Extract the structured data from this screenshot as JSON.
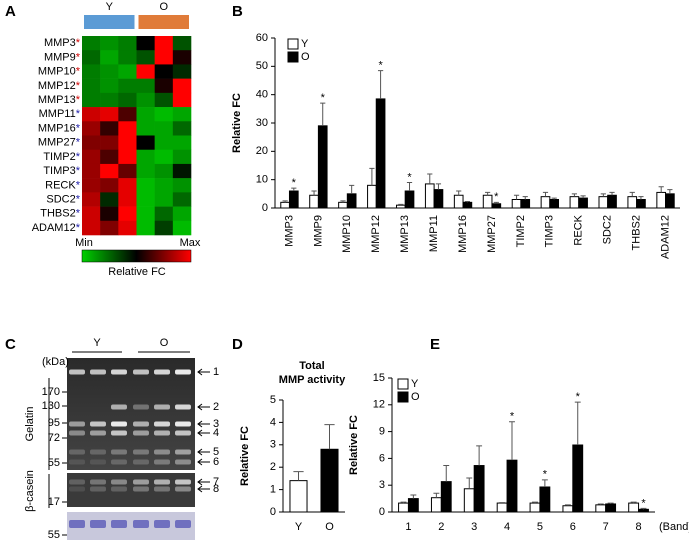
{
  "chart_data": [
    {
      "type": "heatmap",
      "panel": "A",
      "columns": [
        "Y",
        "O"
      ],
      "column_colors": [
        "#5b9bd5",
        "#e07b39"
      ],
      "rows": [
        "MMP3",
        "MMP9",
        "MMP10",
        "MMP12",
        "MMP13",
        "MMP11",
        "MMP16",
        "MMP27",
        "TIMP2",
        "TIMP3",
        "RECK",
        "SDC2",
        "THBS2",
        "ADAM12"
      ],
      "row_markers": [
        "*",
        "*",
        "*",
        "*",
        "*",
        "*",
        "*",
        "*",
        "*",
        "*",
        "*",
        "*",
        "*",
        "*"
      ],
      "row_marker_colors": [
        "#d00000",
        "#d00000",
        "#d00000",
        "#d00000",
        "#d00000",
        "#1a1aa8",
        "#1a1aa8",
        "#1a1aa8",
        "#1a1aa8",
        "#1a1aa8",
        "#1a1aa8",
        "#1a1aa8",
        "#1a1aa8",
        "#1a1aa8"
      ],
      "z": [
        [
          -0.6,
          -0.7,
          -0.6,
          0,
          1,
          -0.4
        ],
        [
          -0.5,
          -0.8,
          -0.6,
          -0.4,
          1,
          0.1
        ],
        [
          -0.6,
          -0.7,
          -0.8,
          1,
          0,
          -0.2
        ],
        [
          -0.6,
          -0.7,
          -0.6,
          -0.6,
          0.1,
          1
        ],
        [
          -0.6,
          -0.6,
          -0.5,
          -0.7,
          -0.4,
          1
        ],
        [
          0.8,
          0.9,
          0.3,
          -0.8,
          -0.9,
          -0.8
        ],
        [
          0.6,
          0.2,
          1,
          -0.8,
          -0.8,
          -0.5
        ],
        [
          0.5,
          0.5,
          1,
          0,
          -0.8,
          -0.8
        ],
        [
          0.6,
          0.3,
          1,
          -0.8,
          -0.9,
          -0.7
        ],
        [
          0.6,
          1,
          0.4,
          -0.8,
          -0.7,
          -0.1
        ],
        [
          0.6,
          0.5,
          0.9,
          -0.9,
          -0.8,
          -0.7
        ],
        [
          0.7,
          -0.2,
          0.9,
          -0.9,
          -0.8,
          -0.5
        ],
        [
          0.8,
          0.1,
          1,
          -0.9,
          -0.5,
          -0.8
        ],
        [
          0.8,
          0.5,
          0.9,
          -0.9,
          -0.3,
          -0.9
        ]
      ],
      "zlim": [
        -1,
        1
      ],
      "colormap": [
        "#00d000",
        "#000000",
        "#ff0000"
      ],
      "colorbar_min": "Min",
      "colorbar_max": "Max",
      "colorbar_label": "Relative FC"
    },
    {
      "type": "bar",
      "panel": "B",
      "ylabel": "Relative FC",
      "categories": [
        "MMP3",
        "MMP9",
        "MMP10",
        "MMP12",
        "MMP13",
        "MMP11",
        "MMP16",
        "MMP27",
        "TIMP2",
        "TIMP3",
        "RECK",
        "SDC2",
        "THBS2",
        "ADAM12"
      ],
      "series": [
        {
          "name": "Y",
          "color": "#ffffff",
          "values": [
            2,
            4.5,
            2,
            8,
            1,
            8.5,
            4.5,
            4.5,
            3,
            4,
            4,
            4,
            4,
            5.5
          ],
          "errors": [
            0.5,
            1.5,
            0.5,
            6,
            0.3,
            3.5,
            1.5,
            1,
            1.5,
            1.5,
            1,
            1,
            1.5,
            2
          ],
          "marks": [
            null,
            null,
            null,
            null,
            null,
            null,
            null,
            null,
            null,
            null,
            null,
            null,
            null,
            null
          ]
        },
        {
          "name": "O",
          "color": "#000000",
          "values": [
            6,
            29,
            5,
            38.5,
            6,
            6.5,
            2,
            1.5,
            3,
            3,
            3.5,
            4.5,
            3,
            5
          ],
          "errors": [
            1,
            8,
            3,
            10,
            3,
            2,
            0.3,
            0.5,
            1,
            0.5,
            0.8,
            1,
            1,
            1.5
          ],
          "marks": [
            "*",
            "*",
            null,
            "*",
            "*",
            null,
            null,
            "*",
            null,
            null,
            null,
            null,
            null,
            null
          ]
        }
      ],
      "ylim": [
        0,
        60
      ],
      "yticks": [
        0,
        10,
        20,
        30,
        40,
        50,
        60
      ]
    },
    {
      "type": "bar",
      "panel": "D",
      "title": [
        "Total",
        "MMP activity"
      ],
      "ylabel": "Relative FC",
      "categories": [
        "Y",
        "O"
      ],
      "series": [
        {
          "color": "#ffffff",
          "values": [
            1.4,
            null
          ],
          "errors": [
            0.4,
            null
          ],
          "marks": [
            null,
            null
          ]
        },
        {
          "color": "#000000",
          "values": [
            null,
            2.8
          ],
          "errors": [
            null,
            1.1
          ],
          "marks": [
            null,
            null
          ]
        }
      ],
      "ylim": [
        0,
        5
      ],
      "yticks": [
        0,
        1,
        2,
        3,
        4,
        5
      ]
    },
    {
      "type": "bar",
      "panel": "E",
      "ylabel": "Relative FC",
      "xlabel": "(Band)",
      "categories": [
        "1",
        "2",
        "3",
        "4",
        "5",
        "6",
        "7",
        "8"
      ],
      "series": [
        {
          "name": "Y",
          "color": "#ffffff",
          "values": [
            1,
            1.6,
            2.6,
            1,
            1,
            0.7,
            0.8,
            1
          ],
          "errors": [
            0.1,
            0.5,
            1.2,
            0.05,
            0.1,
            0.1,
            0.1,
            0.1
          ],
          "marks": [
            null,
            null,
            null,
            null,
            null,
            null,
            null,
            null
          ]
        },
        {
          "name": "O",
          "color": "#000000",
          "values": [
            1.5,
            3.4,
            5.2,
            5.8,
            2.8,
            7.5,
            0.9,
            0.3
          ],
          "errors": [
            0.4,
            1.8,
            2.2,
            4.3,
            0.8,
            4.8,
            0.1,
            0.1
          ],
          "marks": [
            null,
            null,
            null,
            "*",
            "*",
            "*",
            null,
            "*"
          ]
        }
      ],
      "ylim": [
        0,
        15
      ],
      "yticks": [
        0,
        3,
        6,
        9,
        12,
        15
      ]
    }
  ],
  "gel": {
    "panel": "C",
    "unit": "(kDa)",
    "groups": [
      "Y",
      "O"
    ],
    "sections": [
      "Gelatin",
      "β-casein"
    ],
    "markers": [
      "170",
      "130",
      "95",
      "72",
      "55",
      "17",
      "55"
    ],
    "bands": [
      "1",
      "2",
      "3",
      "4",
      "5",
      "6",
      "7",
      "8"
    ]
  }
}
